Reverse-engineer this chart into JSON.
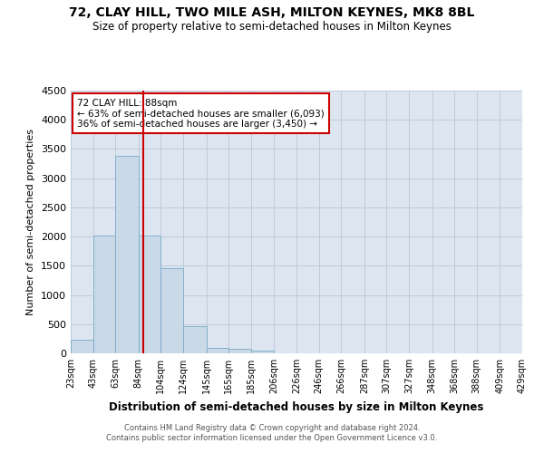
{
  "title": "72, CLAY HILL, TWO MILE ASH, MILTON KEYNES, MK8 8BL",
  "subtitle": "Size of property relative to semi-detached houses in Milton Keynes",
  "xlabel": "Distribution of semi-detached houses by size in Milton Keynes",
  "ylabel": "Number of semi-detached properties",
  "footer_line1": "Contains HM Land Registry data © Crown copyright and database right 2024.",
  "footer_line2": "Contains public sector information licensed under the Open Government Licence v3.0.",
  "annotation_title": "72 CLAY HILL: 88sqm",
  "annotation_line1": "← 63% of semi-detached houses are smaller (6,093)",
  "annotation_line2": "36% of semi-detached houses are larger (3,450) →",
  "property_size": 88,
  "bar_color": "#c9d9e8",
  "bar_edge_color": "#7aaac8",
  "vline_color": "#cc0000",
  "annotation_box_color": "#ffffff",
  "annotation_box_edge": "#cc0000",
  "background_color": "#ffffff",
  "axes_bg_color": "#dde5f0",
  "grid_color": "#b8c8d8",
  "categories": [
    "23sqm",
    "43sqm",
    "63sqm",
    "84sqm",
    "104sqm",
    "124sqm",
    "145sqm",
    "165sqm",
    "185sqm",
    "206sqm",
    "226sqm",
    "246sqm",
    "266sqm",
    "287sqm",
    "307sqm",
    "327sqm",
    "348sqm",
    "368sqm",
    "388sqm",
    "409sqm",
    "429sqm"
  ],
  "bin_edges": [
    23,
    43,
    63,
    84,
    104,
    124,
    145,
    165,
    185,
    206,
    226,
    246,
    266,
    287,
    307,
    327,
    348,
    368,
    388,
    409,
    429
  ],
  "values": [
    230,
    2020,
    3380,
    2020,
    1460,
    470,
    100,
    70,
    50,
    0,
    0,
    0,
    0,
    0,
    0,
    0,
    0,
    0,
    0,
    0
  ],
  "ylim": [
    0,
    4500
  ],
  "yticks": [
    0,
    500,
    1000,
    1500,
    2000,
    2500,
    3000,
    3500,
    4000,
    4500
  ]
}
